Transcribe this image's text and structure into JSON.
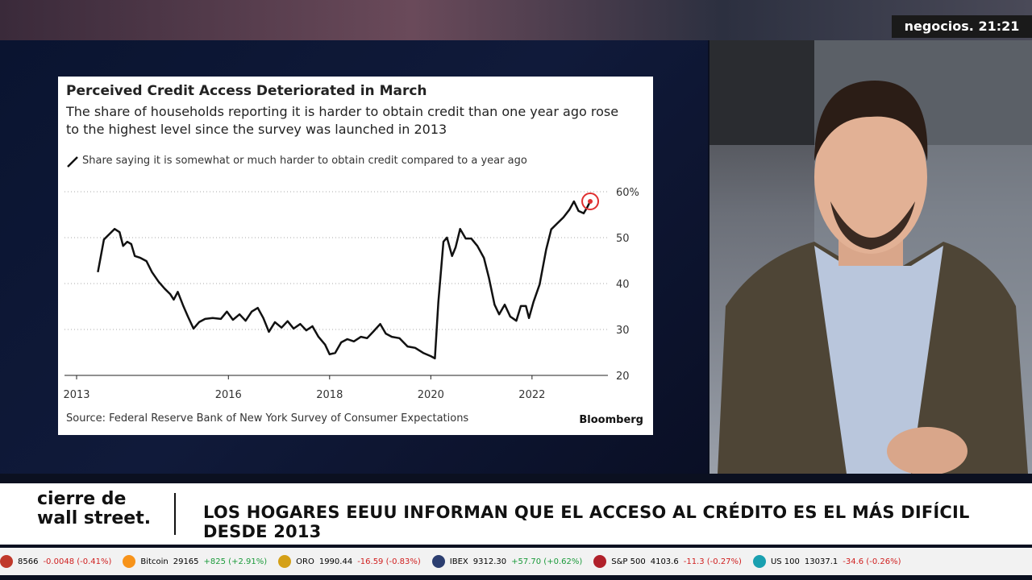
{
  "channel": "negocios.",
  "clock": "21:21",
  "banner": {
    "show": [
      "cierre de",
      "wall street."
    ],
    "headline": "LOS HOGARES EEUU INFORMAN QUE EL ACCESO AL CRÉDITO ES EL MÁS DIFÍCIL DESDE 2013"
  },
  "ticker": [
    {
      "name": "",
      "value": "8566",
      "change": "-0.0048 (-0.41%)",
      "up": false,
      "color": "#c0392b"
    },
    {
      "name": "Bitcoin",
      "value": "29165",
      "change": "+825 (+2.91%)",
      "up": true,
      "color": "#f7931a"
    },
    {
      "name": "ORO",
      "value": "1990.44",
      "change": "-16.59 (-0.83%)",
      "up": false,
      "color": "#d4a017"
    },
    {
      "name": "IBEX",
      "value": "9312.30",
      "change": "+57.70 (+0.62%)",
      "up": true,
      "color": "#2c3e70"
    },
    {
      "name": "S&P 500",
      "value": "4103.6",
      "change": "-11.3 (-0.27%)",
      "up": false,
      "color": "#b0202a"
    },
    {
      "name": "US 100",
      "value": "13037.1",
      "change": "-34.6 (-0.26%)",
      "up": false,
      "color": "#1aa0b0"
    }
  ],
  "chart_data": {
    "type": "line",
    "title": "Perceived Credit Access Deteriorated in March",
    "subtitle": "The share of households reporting it is harder to obtain credit than one year ago rose to the highest level since the survey was launched in 2013",
    "source": "Source: Federal Reserve Bank of New York Survey of Consumer Expectations",
    "brand": "Bloomberg",
    "xlim": [
      2013,
      2023.5
    ],
    "xticks": [
      2013,
      2016,
      2018,
      2020,
      2022
    ],
    "ylim": [
      20,
      62
    ],
    "yticks": [
      {
        "value": 60,
        "label": "60%"
      },
      50,
      40,
      30,
      20
    ],
    "grid": true,
    "x": [
      2013.42,
      2013.54,
      2013.66,
      2013.75,
      2013.85,
      2013.92,
      2014.0,
      2014.08,
      2014.15,
      2014.26,
      2014.38,
      2014.49,
      2014.62,
      2014.74,
      2014.85,
      2014.92,
      2015.0,
      2015.11,
      2015.2,
      2015.31,
      2015.42,
      2015.54,
      2015.69,
      2015.85,
      2015.97,
      2016.09,
      2016.22,
      2016.34,
      2016.46,
      2016.58,
      2016.69,
      2016.8,
      2016.92,
      2017.05,
      2017.17,
      2017.29,
      2017.42,
      2017.54,
      2017.66,
      2017.78,
      2017.91,
      2018.0,
      2018.11,
      2018.23,
      2018.35,
      2018.48,
      2018.62,
      2018.74,
      2018.86,
      2019.0,
      2019.11,
      2019.23,
      2019.38,
      2019.54,
      2019.69,
      2019.85,
      2020.0,
      2020.08,
      2020.15,
      2020.25,
      2020.32,
      2020.42,
      2020.49,
      2020.58,
      2020.69,
      2020.8,
      2020.92,
      2021.05,
      2021.15,
      2021.26,
      2021.35,
      2021.46,
      2021.57,
      2021.69,
      2021.78,
      2021.88,
      2021.94,
      2022.03,
      2022.15,
      2022.28,
      2022.38,
      2022.49,
      2022.62,
      2022.74,
      2022.83,
      2022.92,
      2023.02,
      2023.09,
      2023.15
    ],
    "series": [
      {
        "name": "Share saying it is somewhat or much harder to obtain credit compared to a year ago",
        "color": "#111111",
        "values": [
          42.5,
          49.6,
          50.9,
          51.9,
          51.2,
          48.2,
          49.1,
          48.6,
          46,
          45.6,
          44.9,
          42.5,
          40.4,
          38.9,
          37.7,
          36.5,
          38.2,
          35.1,
          32.8,
          30.2,
          31.6,
          32.3,
          32.5,
          32.3,
          33.9,
          32.1,
          33.3,
          31.9,
          33.9,
          34.7,
          32.5,
          29.5,
          31.6,
          30.4,
          31.8,
          30.2,
          31.2,
          29.8,
          30.7,
          28.4,
          26.7,
          24.6,
          24.9,
          27.2,
          27.9,
          27.4,
          28.4,
          28.1,
          29.5,
          31.2,
          29.1,
          28.4,
          28.1,
          26.3,
          26,
          24.9,
          24.2,
          23.7,
          36,
          49.1,
          50,
          46,
          47.9,
          51.9,
          49.8,
          49.8,
          48.2,
          45.6,
          41.2,
          35.4,
          33.3,
          35.4,
          32.8,
          31.9,
          35.1,
          35.1,
          32.5,
          36,
          39.8,
          47.4,
          51.8,
          53,
          54.4,
          56.1,
          57.9,
          55.8,
          55.3,
          56.6,
          57.9
        ]
      }
    ],
    "highlight_color": "#e03030"
  }
}
